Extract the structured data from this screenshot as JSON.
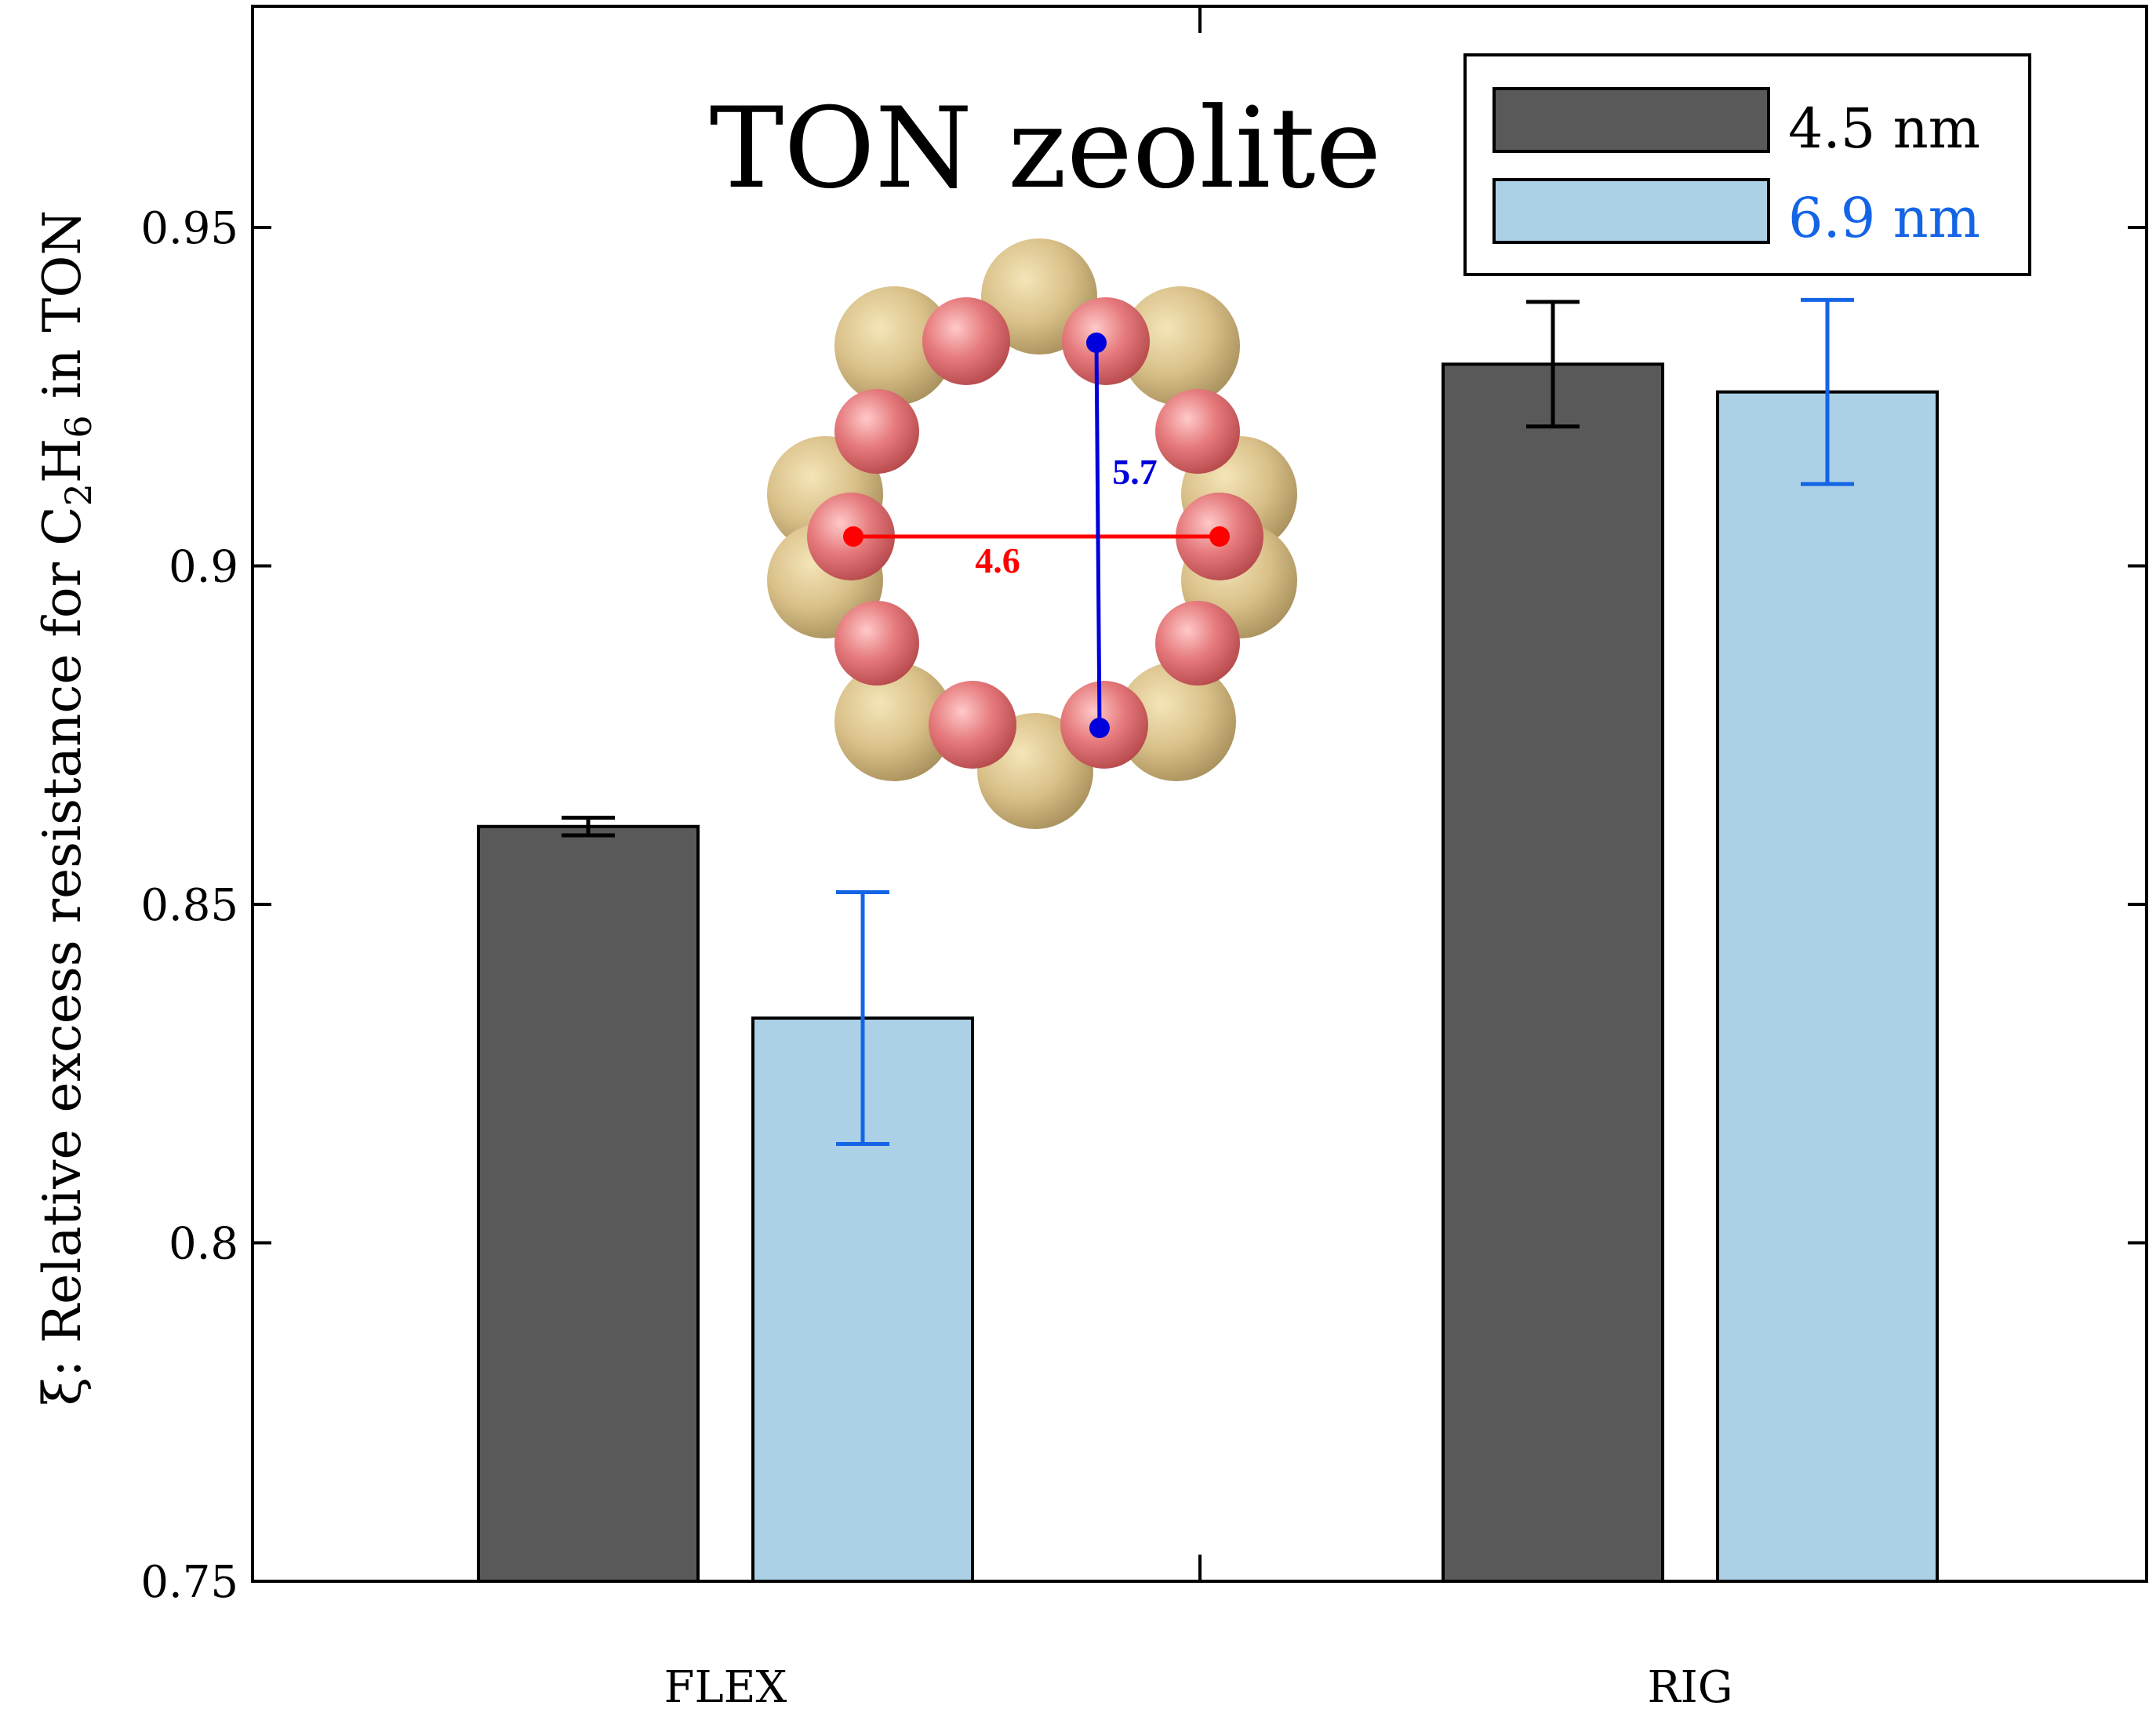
{
  "chart_data": {
    "type": "bar",
    "title": "TON zeolite",
    "categories": [
      "FLEX",
      "RIG"
    ],
    "series": [
      {
        "name": "4.5 nm",
        "values": [
          0.8615,
          0.9298
        ],
        "error": [
          0.0013,
          0.0092
        ],
        "fill": "#595959",
        "error_color": "#000000",
        "legend_text_color": "#000000"
      },
      {
        "name": "6.9 nm",
        "values": [
          0.8332,
          0.9257
        ],
        "error": [
          0.0186,
          0.0136
        ],
        "fill": "#acd0e6",
        "error_color": "#1464e6",
        "legend_text_color": "#1464e6"
      }
    ],
    "ylabel": {
      "prefix": "ξ: Relative excess resistance for C",
      "sub1": "2",
      "mid": "H",
      "sub2": "6",
      "suffix": " in TON"
    },
    "xlabel": "",
    "ylim": [
      0.75,
      0.98
    ],
    "yticks": [
      0.75,
      0.8,
      0.85,
      0.9,
      0.95
    ],
    "ytick_labels": [
      "0.75",
      "0.8",
      "0.85",
      "0.9",
      "0.95"
    ],
    "legend_position": "top-right",
    "grid": false,
    "inset": {
      "description_icon": "zeolite-ring-structure",
      "horizontal_label": "4.6",
      "vertical_label": "5.7",
      "horizontal_color": "#ff0000",
      "vertical_color": "#0000dd",
      "oxygen_color": "#e5797b",
      "silicon_color": "#d9c089"
    }
  }
}
